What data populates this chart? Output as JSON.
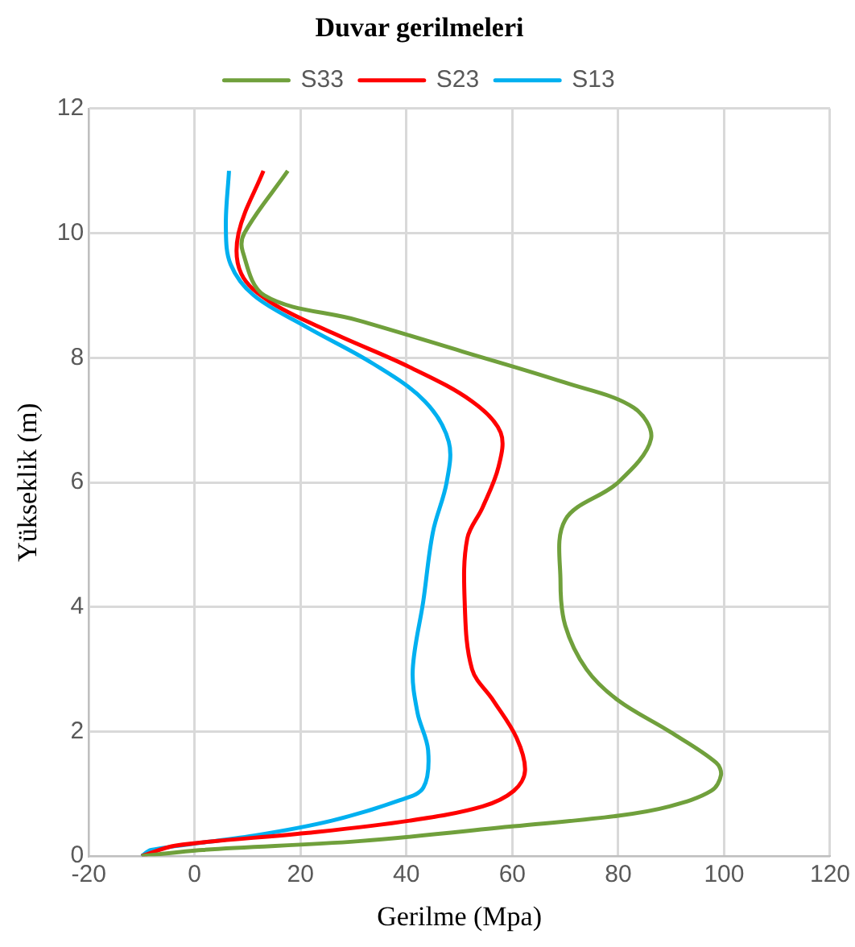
{
  "chart_data": {
    "type": "line",
    "title": "Duvar gerilmeleri",
    "xlabel": "Gerilme (Mpa)",
    "ylabel": "Yükseklik (m)",
    "xlim": [
      -20,
      120
    ],
    "xticks": [
      -20,
      0,
      20,
      40,
      60,
      80,
      100,
      120
    ],
    "ylim": [
      0,
      12
    ],
    "yticks": [
      0,
      2,
      4,
      6,
      8,
      10,
      12
    ],
    "grid": true,
    "legend": "top",
    "marker": "none",
    "line_style": "solid",
    "series": [
      {
        "name": "S33",
        "color": "#70a03c",
        "x": [
          17.6,
          9.4,
          9.1,
          13.2,
          30.9,
          50.6,
          70,
          82.9,
          86.2,
          80,
          70,
          69.1,
          70,
          74,
          80,
          89.7,
          98.5,
          99.4,
          97.6,
          89.7,
          80,
          60.3,
          30.9,
          1.5,
          -10
        ],
        "values": [
          11.0,
          10.0,
          9.7,
          9.0,
          8.6,
          8.1,
          7.6,
          7.2,
          6.7,
          6.0,
          5.4,
          4.4,
          3.7,
          3.0,
          2.5,
          2.0,
          1.5,
          1.3,
          1.05,
          0.8,
          0.65,
          0.48,
          0.24,
          0.1,
          0
        ]
      },
      {
        "name": "S23",
        "color": "#ff0000",
        "x": [
          13,
          8.3,
          8.8,
          14.2,
          26,
          40.6,
          52.4,
          57.8,
          57.4,
          54.4,
          51.5,
          51,
          52.4,
          56.4,
          60.8,
          62.4,
          60.3,
          54.4,
          40.6,
          21,
          -3.5,
          -10
        ],
        "values": [
          11.0,
          10.0,
          9.35,
          8.9,
          8.4,
          7.85,
          7.3,
          6.8,
          6.25,
          5.6,
          5.1,
          4.1,
          3.0,
          2.5,
          1.9,
          1.37,
          1.05,
          0.8,
          0.57,
          0.37,
          0.17,
          0
        ]
      },
      {
        "name": "S13",
        "color": "#00b0f0",
        "x": [
          6.5,
          5.9,
          6.8,
          11.2,
          21,
          33.8,
          43.5,
          48,
          47.6,
          45,
          43.2,
          41.2,
          42.1,
          44.1,
          43.2,
          38.8,
          25.9,
          11.2,
          -8.2,
          -10
        ],
        "values": [
          11.0,
          10.1,
          9.5,
          9.0,
          8.5,
          7.9,
          7.3,
          6.65,
          6.0,
          5.2,
          4.1,
          3.0,
          2.3,
          1.7,
          1.1,
          0.9,
          0.57,
          0.33,
          0.1,
          0
        ]
      }
    ]
  }
}
